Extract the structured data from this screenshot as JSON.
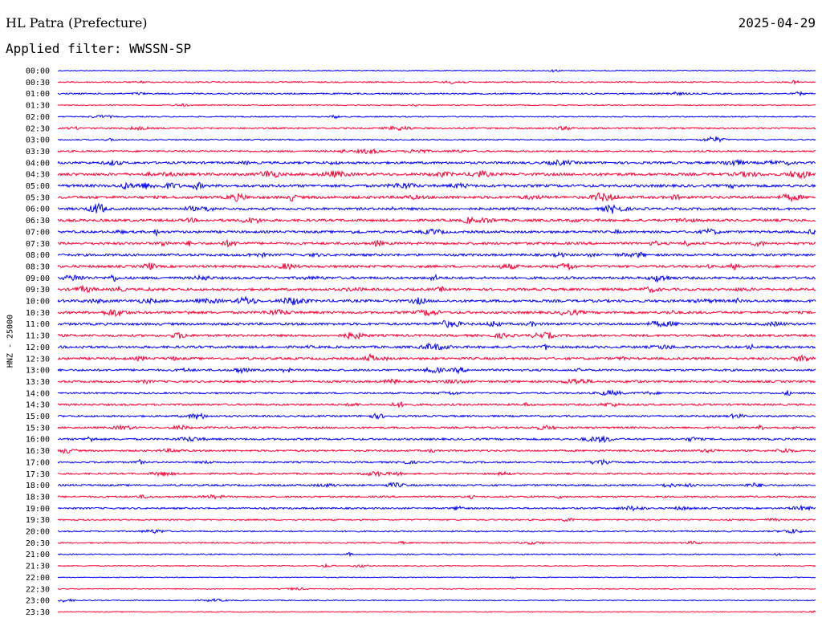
{
  "header": {
    "station": "HL Patra (Prefecture)",
    "date": "2025-04-29",
    "filter_text": "Applied filter: WWSSN-SP"
  },
  "chart_data": {
    "type": "line",
    "title": "HL Patra (Prefecture)",
    "ylabel": "HNZ - 25000",
    "colors": [
      "#0000ff",
      "#ff0033"
    ],
    "rows": [
      "00:00",
      "00:30",
      "01:00",
      "01:30",
      "02:00",
      "02:30",
      "03:00",
      "03:30",
      "04:00",
      "04:30",
      "05:00",
      "05:30",
      "06:00",
      "06:30",
      "07:00",
      "07:30",
      "08:00",
      "08:30",
      "09:00",
      "09:30",
      "10:00",
      "10:30",
      "11:00",
      "11:30",
      "12:00",
      "12:30",
      "13:00",
      "13:30",
      "14:00",
      "14:30",
      "15:00",
      "15:30",
      "16:00",
      "16:30",
      "17:00",
      "17:30",
      "18:00",
      "18:30",
      "19:00",
      "19:30",
      "20:00",
      "20:30",
      "21:00",
      "21:30",
      "22:00",
      "22:30",
      "23:00",
      "23:30"
    ],
    "activity": [
      0.15,
      0.3,
      0.35,
      0.2,
      0.25,
      0.4,
      0.3,
      0.45,
      0.7,
      0.85,
      0.8,
      0.85,
      0.75,
      0.75,
      0.7,
      0.75,
      0.7,
      0.75,
      0.75,
      0.75,
      0.8,
      0.75,
      0.7,
      0.7,
      0.7,
      0.7,
      0.6,
      0.6,
      0.45,
      0.55,
      0.5,
      0.5,
      0.55,
      0.5,
      0.45,
      0.45,
      0.5,
      0.45,
      0.45,
      0.35,
      0.35,
      0.3,
      0.25,
      0.2,
      0.15,
      0.15,
      0.2,
      0.15
    ]
  }
}
